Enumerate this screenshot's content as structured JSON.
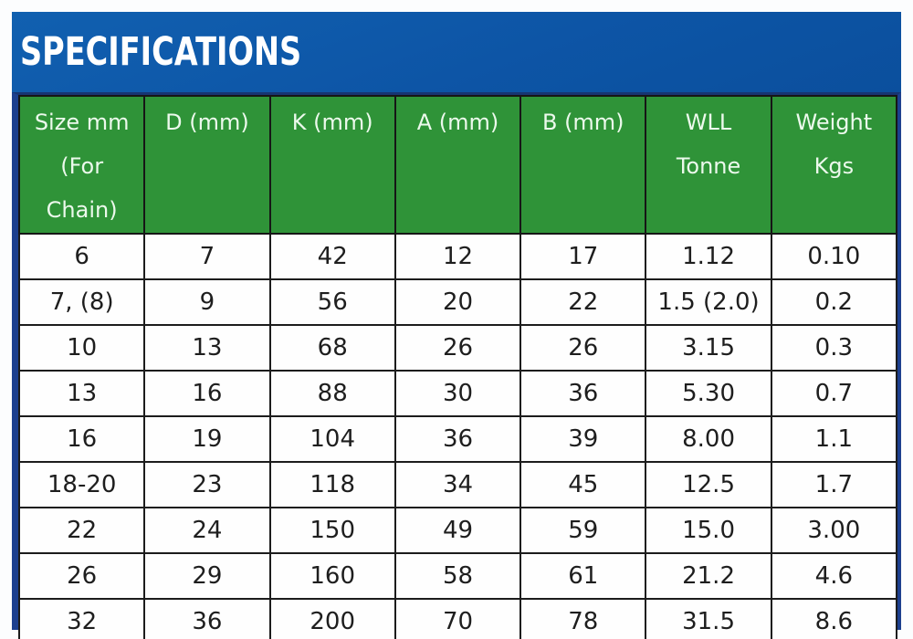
{
  "banner": {
    "title": "SPECIFICATIONS",
    "background_color": "#0d55a6",
    "text_color": "#ffffff"
  },
  "table": {
    "header_background_color": "#2f9338",
    "header_text_color": "#ecf9ec",
    "outer_border_color": "#1c3f8e",
    "grid_color": "#1c1c1c",
    "cell_background_color": "#fefefe",
    "cell_text_color": "#1e1e1e",
    "headers": [
      {
        "label": "Size mm (For Chain)",
        "lines": [
          "Size mm",
          "(For",
          "Chain)"
        ]
      },
      {
        "label": "D (mm)",
        "lines": [
          "D (mm)"
        ]
      },
      {
        "label": "K (mm)",
        "lines": [
          "K (mm)"
        ]
      },
      {
        "label": "A (mm)",
        "lines": [
          "A (mm)"
        ]
      },
      {
        "label": "B (mm)",
        "lines": [
          "B (mm)"
        ]
      },
      {
        "label": "WLL Tonne",
        "lines": [
          "WLL",
          "Tonne"
        ]
      },
      {
        "label": "Weight Kgs",
        "lines": [
          "Weight",
          "Kgs"
        ]
      }
    ],
    "rows": [
      [
        "6",
        "7",
        "42",
        "12",
        "17",
        "1.12",
        "0.10"
      ],
      [
        "7, (8)",
        "9",
        "56",
        "20",
        "22",
        "1.5 (2.0)",
        "0.2"
      ],
      [
        "10",
        "13",
        "68",
        "26",
        "26",
        "3.15",
        "0.3"
      ],
      [
        "13",
        "16",
        "88",
        "30",
        "36",
        "5.30",
        "0.7"
      ],
      [
        "16",
        "19",
        "104",
        "36",
        "39",
        "8.00",
        "1.1"
      ],
      [
        "18-20",
        "23",
        "118",
        "34",
        "45",
        "12.5",
        "1.7"
      ],
      [
        "22",
        "24",
        "150",
        "49",
        "59",
        "15.0",
        "3.00"
      ],
      [
        "26",
        "29",
        "160",
        "58",
        "61",
        "21.2",
        "4.6"
      ],
      [
        "32",
        "36",
        "200",
        "70",
        "78",
        "31.5",
        "8.6"
      ]
    ]
  }
}
